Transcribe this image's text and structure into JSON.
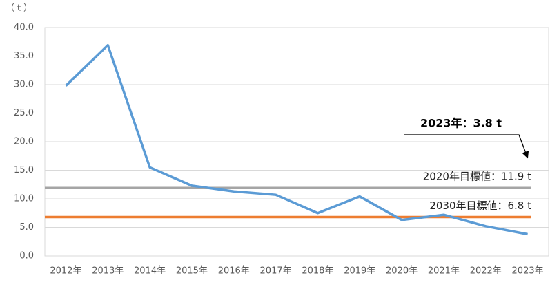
{
  "chart_data": {
    "type": "line",
    "y_unit": "（ｔ）",
    "categories": [
      "2012年",
      "2013年",
      "2014年",
      "2015年",
      "2016年",
      "2017年",
      "2018年",
      "2019年",
      "2020年",
      "2021年",
      "2022年",
      "2023年"
    ],
    "values": [
      29.8,
      36.9,
      15.5,
      12.3,
      11.3,
      10.7,
      7.5,
      10.4,
      6.3,
      7.2,
      5.2,
      3.8
    ],
    "color": "#5b9bd5",
    "ylim": [
      0,
      40
    ],
    "yticks": [
      {
        "value": 0,
        "label": "0.0"
      },
      {
        "value": 5,
        "label": "5.0"
      },
      {
        "value": 10,
        "label": "10.0"
      },
      {
        "value": 15,
        "label": "15.0"
      },
      {
        "value": 20,
        "label": "20.0"
      },
      {
        "value": 25,
        "label": "25.0"
      },
      {
        "value": 30,
        "label": "30.0"
      },
      {
        "value": 35,
        "label": "35.0"
      },
      {
        "value": 40,
        "label": "40.0"
      }
    ],
    "grid": true,
    "reference_lines": [
      {
        "label": "2020年目標値：11.9 t",
        "value": 11.9,
        "color": "#a5a5a5"
      },
      {
        "label": "2030年目標値：6.8 t",
        "value": 6.8,
        "color": "#ed7d31"
      }
    ],
    "annotation": "2023年：3.8 t"
  }
}
